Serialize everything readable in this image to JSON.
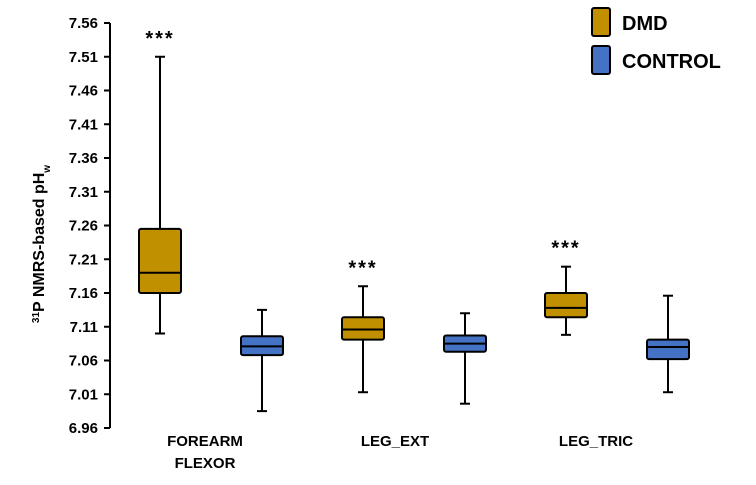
{
  "chart_data": {
    "type": "box",
    "ylabel_parts": {
      "superscript": "31",
      "main": "P NMRS-based pH",
      "subscript": "w"
    },
    "ylim": [
      6.96,
      7.56
    ],
    "yticks": [
      "6.96",
      "7.01",
      "7.06",
      "7.11",
      "7.16",
      "7.21",
      "7.26",
      "7.31",
      "7.36",
      "7.41",
      "7.46",
      "7.51",
      "7.56"
    ],
    "categories": [
      {
        "label_lines": [
          "FOREARM",
          "FLEXOR"
        ],
        "significance": "***"
      },
      {
        "label_lines": [
          "LEG_EXT"
        ],
        "significance": "***"
      },
      {
        "label_lines": [
          "LEG_TRIC"
        ],
        "significance": "***"
      }
    ],
    "series": [
      {
        "name": "DMD",
        "color": "#c09000",
        "boxes": [
          {
            "min": 7.1,
            "q1": 7.16,
            "median": 7.19,
            "q3": 7.255,
            "max": 7.51
          },
          {
            "min": 7.013,
            "q1": 7.091,
            "median": 7.106,
            "q3": 7.124,
            "max": 7.17
          },
          {
            "min": 7.098,
            "q1": 7.124,
            "median": 7.138,
            "q3": 7.16,
            "max": 7.199
          }
        ]
      },
      {
        "name": "CONTROL",
        "color": "#4472c4",
        "boxes": [
          {
            "min": 6.985,
            "q1": 7.068,
            "median": 7.081,
            "q3": 7.096,
            "max": 7.135
          },
          {
            "min": 6.996,
            "q1": 7.073,
            "median": 7.085,
            "q3": 7.097,
            "max": 7.13
          },
          {
            "min": 7.013,
            "q1": 7.062,
            "median": 7.08,
            "q3": 7.091,
            "max": 7.156
          }
        ]
      }
    ],
    "legend": {
      "position": "top-right"
    },
    "grid": false
  }
}
